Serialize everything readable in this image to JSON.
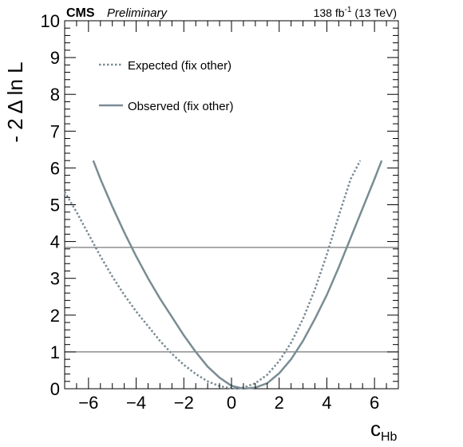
{
  "header": {
    "experiment": "CMS",
    "status": "Preliminary",
    "lumi_value": "138 fb",
    "lumi_exp": "-1",
    "lumi_energy": " (13 TeV)"
  },
  "chart_data": {
    "type": "line",
    "xlabel_main": "c",
    "xlabel_sub": "Hb",
    "ylabel": "- 2 Δ ln L",
    "xlim": [
      -7,
      7
    ],
    "ylim": [
      0,
      10
    ],
    "x_major_ticks": [
      -6,
      -4,
      -2,
      0,
      2,
      4,
      6
    ],
    "x_tick_labels": [
      "−6",
      "−4",
      "−2",
      "0",
      "2",
      "4",
      "6"
    ],
    "y_major_ticks": [
      0,
      1,
      2,
      3,
      4,
      5,
      6,
      7,
      8,
      9,
      10
    ],
    "y_tick_labels": [
      "0",
      "1",
      "2",
      "3",
      "4",
      "5",
      "6",
      "7",
      "8",
      "9",
      "10"
    ],
    "reference_lines": [
      1,
      3.84
    ],
    "legend_placement": "top-left",
    "series": [
      {
        "name": "Expected (fix other)",
        "style": "dotted",
        "color": "#7a8c94",
        "x": [
          -7.0,
          -6.5,
          -6.0,
          -5.5,
          -5.0,
          -4.5,
          -4.0,
          -3.5,
          -3.0,
          -2.5,
          -2.0,
          -1.5,
          -1.0,
          -0.5,
          0.0,
          0.5,
          1.0,
          1.5,
          2.0,
          2.5,
          3.0,
          3.5,
          4.0,
          4.5,
          5.0,
          5.4
        ],
        "y": [
          5.35,
          4.8,
          4.2,
          3.6,
          3.05,
          2.55,
          2.1,
          1.7,
          1.3,
          0.95,
          0.65,
          0.4,
          0.2,
          0.07,
          0.01,
          0.03,
          0.15,
          0.38,
          0.75,
          1.25,
          1.9,
          2.7,
          3.65,
          4.7,
          5.7,
          6.2
        ]
      },
      {
        "name": "Observed (fix other)",
        "style": "solid",
        "color": "#7a8c94",
        "x": [
          -5.8,
          -5.5,
          -5.0,
          -4.5,
          -4.0,
          -3.5,
          -3.0,
          -2.5,
          -2.0,
          -1.5,
          -1.0,
          -0.5,
          0.0,
          0.5,
          1.0,
          1.5,
          2.0,
          2.5,
          3.0,
          3.5,
          4.0,
          4.5,
          5.0,
          5.5,
          6.0,
          6.3
        ],
        "y": [
          6.2,
          5.7,
          4.95,
          4.25,
          3.6,
          3.0,
          2.45,
          1.95,
          1.45,
          1.0,
          0.6,
          0.3,
          0.08,
          0.0,
          0.03,
          0.15,
          0.42,
          0.8,
          1.3,
          1.9,
          2.55,
          3.3,
          4.1,
          4.9,
          5.7,
          6.2
        ]
      }
    ]
  }
}
